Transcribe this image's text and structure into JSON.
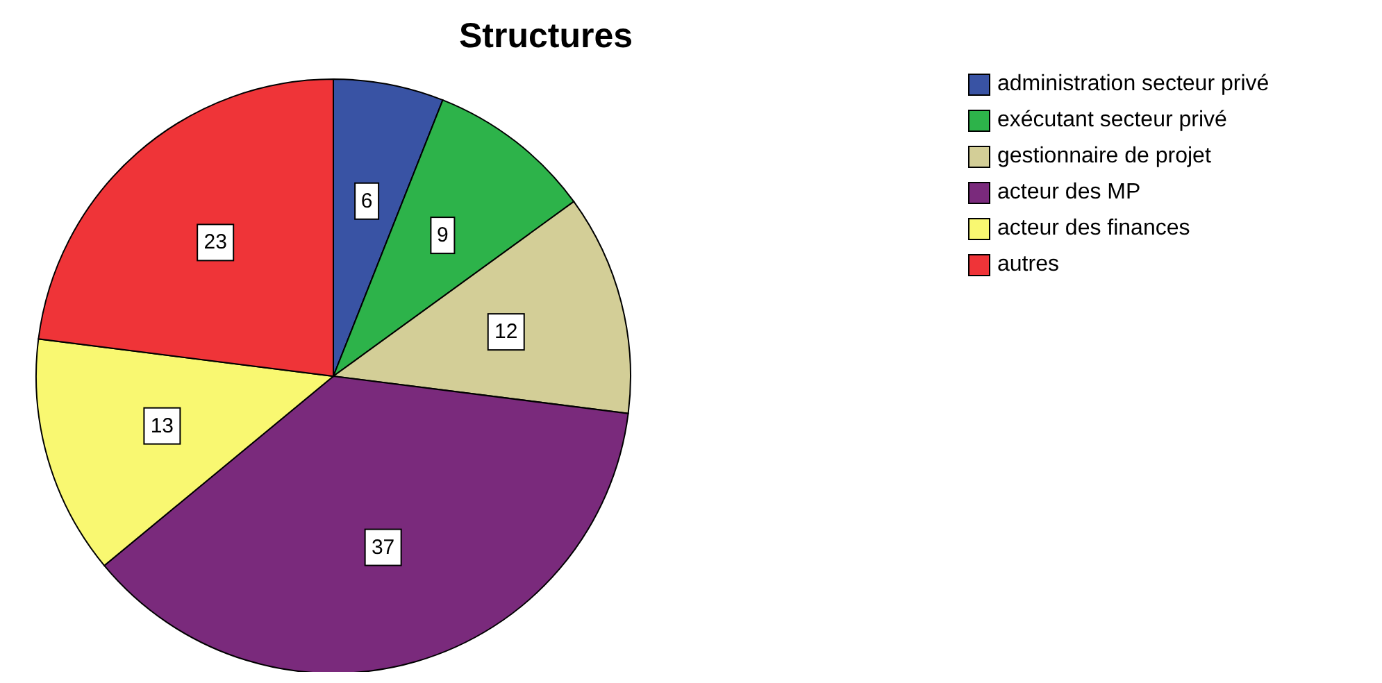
{
  "chart_data": {
    "type": "pie",
    "title": "Structures",
    "categories": [
      "administration secteur privé",
      "exécutant secteur privé",
      "gestionnaire de projet",
      "acteur des MP",
      "acteur des finances",
      "autres"
    ],
    "values": [
      6,
      9,
      12,
      37,
      13,
      23
    ],
    "colors": [
      "#3953a4",
      "#2db34a",
      "#d3ce97",
      "#7a2a7c",
      "#f9f871",
      "#ef3438"
    ],
    "data_labels": true,
    "legend": "top right"
  }
}
